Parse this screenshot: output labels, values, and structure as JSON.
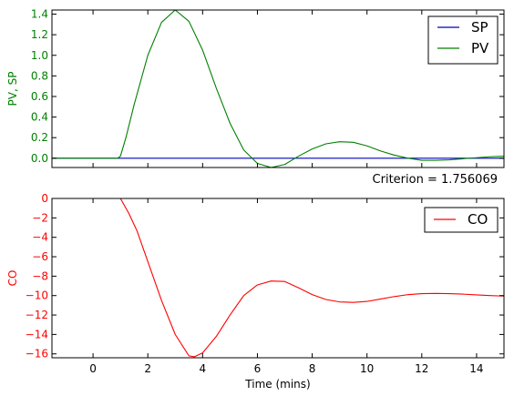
{
  "figure": {
    "criterion_text": "Criterion = 1.756069",
    "colors": {
      "sp": "#0000bf",
      "pv": "#008000",
      "co": "#ff0000",
      "axis": "#000000"
    }
  },
  "chart_data": [
    {
      "type": "line",
      "ylabel": "PV, SP",
      "ylabel_color": "#008000",
      "xlim": [
        -1.5,
        15
      ],
      "ylim": [
        -0.09,
        1.44
      ],
      "x_ticks": [
        0,
        2,
        4,
        6,
        8,
        10,
        12,
        14
      ],
      "show_x_tick_labels": false,
      "y_ticks": [
        0.0,
        0.2,
        0.4,
        0.6,
        0.8,
        1.0,
        1.2,
        1.4
      ],
      "y_tick_labels": [
        "0.0",
        "0.2",
        "0.4",
        "0.6",
        "0.8",
        "1.0",
        "1.2",
        "1.4"
      ],
      "y_tick_color": "#008000",
      "legend": "top-right",
      "series": [
        {
          "name": "SP",
          "color": "#0000bf",
          "points": [
            [
              -1.5,
              0
            ],
            [
              15,
              0
            ]
          ]
        },
        {
          "name": "PV",
          "color": "#008000",
          "points": [
            [
              -1.5,
              0
            ],
            [
              0.9,
              0
            ],
            [
              1.0,
              0.02
            ],
            [
              1.2,
              0.2
            ],
            [
              1.5,
              0.52
            ],
            [
              2.0,
              1.0
            ],
            [
              2.5,
              1.32
            ],
            [
              3.0,
              1.44
            ],
            [
              3.5,
              1.33
            ],
            [
              4.0,
              1.05
            ],
            [
              4.5,
              0.68
            ],
            [
              5.0,
              0.34
            ],
            [
              5.5,
              0.08
            ],
            [
              6.0,
              -0.05
            ],
            [
              6.5,
              -0.09
            ],
            [
              7.0,
              -0.06
            ],
            [
              7.5,
              0.02
            ],
            [
              8.0,
              0.09
            ],
            [
              8.5,
              0.14
            ],
            [
              9.0,
              0.16
            ],
            [
              9.5,
              0.155
            ],
            [
              10.0,
              0.12
            ],
            [
              10.5,
              0.07
            ],
            [
              11.0,
              0.03
            ],
            [
              11.5,
              0.0
            ],
            [
              12.0,
              -0.02
            ],
            [
              12.5,
              -0.02
            ],
            [
              13.0,
              -0.015
            ],
            [
              13.5,
              -0.005
            ],
            [
              14.0,
              0.005
            ],
            [
              14.5,
              0.015
            ],
            [
              15.0,
              0.02
            ]
          ]
        }
      ]
    },
    {
      "type": "line",
      "ylabel": "CO",
      "ylabel_color": "#ff0000",
      "xlabel": "Time (mins)",
      "xlim": [
        -1.5,
        15
      ],
      "ylim": [
        -16.4,
        0
      ],
      "x_ticks": [
        0,
        2,
        4,
        6,
        8,
        10,
        12,
        14
      ],
      "x_tick_labels": [
        "0",
        "2",
        "4",
        "6",
        "8",
        "10",
        "12",
        "14"
      ],
      "y_ticks": [
        0,
        -2,
        -4,
        -6,
        -8,
        -10,
        -12,
        -14,
        -16
      ],
      "y_tick_labels": [
        "0",
        "−2",
        "−4",
        "−6",
        "−8",
        "−10",
        "−12",
        "−14",
        "−16"
      ],
      "y_tick_color": "#ff0000",
      "legend": "top-right",
      "series": [
        {
          "name": "CO",
          "color": "#ff0000",
          "points": [
            [
              1.0,
              0.0
            ],
            [
              1.3,
              -1.5
            ],
            [
              1.6,
              -3.3
            ],
            [
              2.0,
              -6.5
            ],
            [
              2.5,
              -10.5
            ],
            [
              3.0,
              -14.0
            ],
            [
              3.5,
              -16.2
            ],
            [
              3.7,
              -16.3
            ],
            [
              4.0,
              -15.9
            ],
            [
              4.5,
              -14.2
            ],
            [
              5.0,
              -12.0
            ],
            [
              5.5,
              -10.0
            ],
            [
              6.0,
              -8.9
            ],
            [
              6.5,
              -8.5
            ],
            [
              7.0,
              -8.55
            ],
            [
              7.5,
              -9.2
            ],
            [
              8.0,
              -9.9
            ],
            [
              8.5,
              -10.4
            ],
            [
              9.0,
              -10.65
            ],
            [
              9.5,
              -10.7
            ],
            [
              10.0,
              -10.6
            ],
            [
              10.5,
              -10.35
            ],
            [
              11.0,
              -10.1
            ],
            [
              11.5,
              -9.9
            ],
            [
              12.0,
              -9.8
            ],
            [
              12.5,
              -9.78
            ],
            [
              13.0,
              -9.8
            ],
            [
              13.5,
              -9.85
            ],
            [
              14.0,
              -9.93
            ],
            [
              14.5,
              -10.0
            ],
            [
              15.0,
              -10.05
            ]
          ]
        }
      ]
    }
  ]
}
